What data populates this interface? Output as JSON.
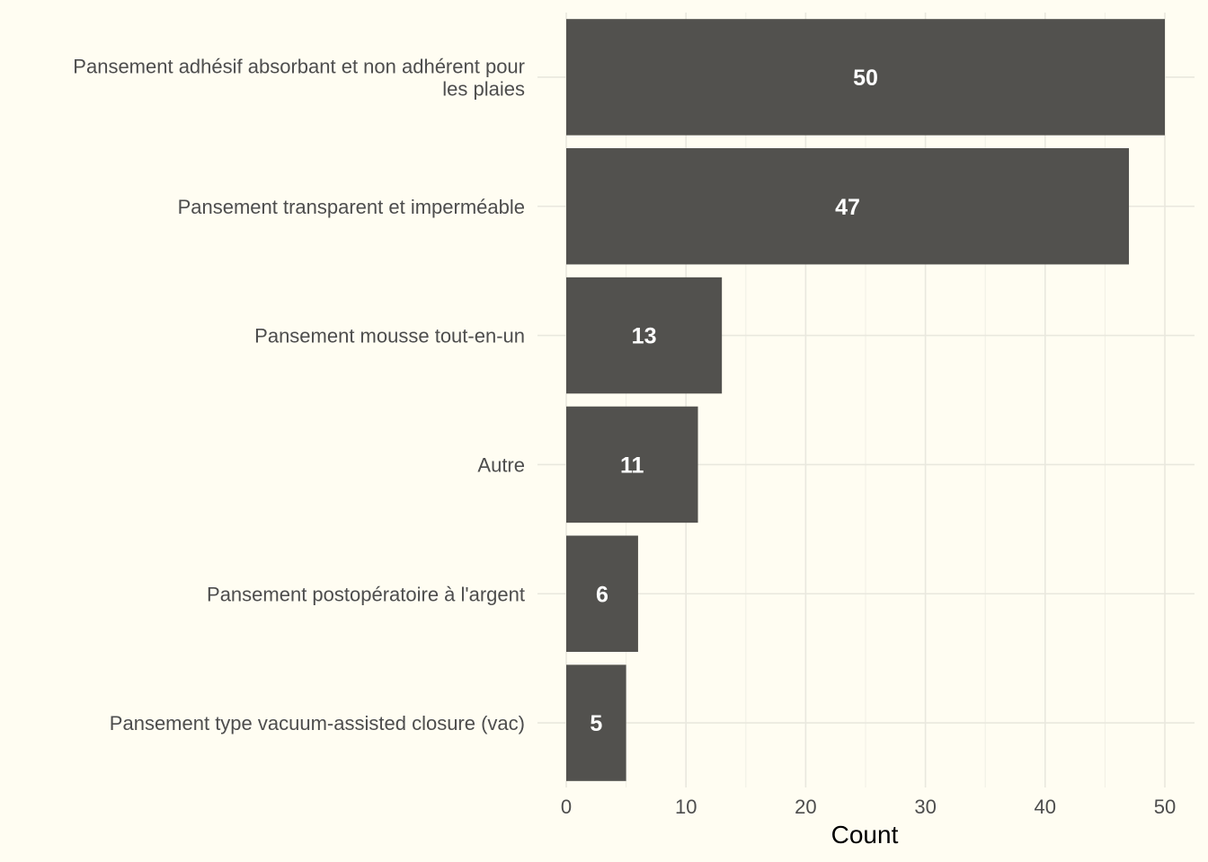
{
  "chart_data": {
    "type": "bar",
    "orientation": "horizontal",
    "categories": [
      [
        "Pansement adhésif absorbant et non adhérent pour",
        "les plaies"
      ],
      [
        "Pansement transparent et imperméable"
      ],
      [
        "Pansement mousse tout-en-un"
      ],
      [
        "Autre"
      ],
      [
        "Pansement postopératoire à l'argent"
      ],
      [
        "Pansement type vacuum-assisted closure (vac)"
      ]
    ],
    "values": [
      50,
      47,
      13,
      11,
      6,
      5
    ],
    "data_labels": [
      "50",
      "47",
      "13",
      "11",
      "6",
      "5"
    ],
    "title": "",
    "xlabel": "Count",
    "ylabel": "",
    "xlim": [
      0,
      52.5
    ],
    "xticks": [
      0,
      10,
      20,
      30,
      40,
      50
    ],
    "xtick_labels": [
      "0",
      "10",
      "20",
      "30",
      "40",
      "50"
    ],
    "grid": true,
    "legend": "none",
    "colors": {
      "background": "#fffdf2",
      "bar": "#52514e",
      "grid": "#e9e8de",
      "data_label": "#ffffff"
    }
  }
}
